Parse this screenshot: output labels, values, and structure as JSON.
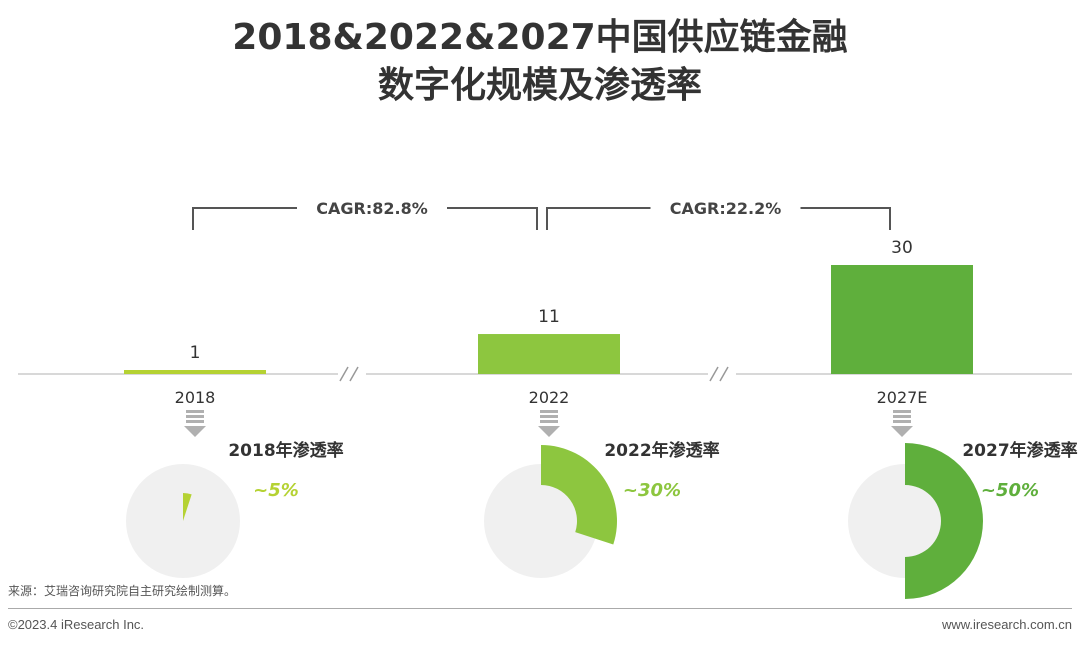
{
  "header": {
    "title_line1": "2018&2022&2027中国供应链金融",
    "title_line2": "数字化规模及渗透率"
  },
  "chart_data": {
    "type": "bar",
    "categories": [
      "2018",
      "2022",
      "2027E"
    ],
    "values": [
      1,
      11,
      30
    ],
    "colors": [
      "#B5D233",
      "#8DC63F",
      "#5FAF3C"
    ],
    "cagr": [
      {
        "label": "CAGR:82.8%",
        "from": "2018",
        "to": "2022"
      },
      {
        "label": "CAGR:22.2%",
        "from": "2022",
        "to": "2027E"
      }
    ],
    "penetration": [
      {
        "title": "2018年渗透率",
        "label": "~5%",
        "value": 5
      },
      {
        "title": "2022年渗透率",
        "label": "~30%",
        "value": 30
      },
      {
        "title": "2027年渗透率",
        "label": "~50%",
        "value": 50
      }
    ]
  },
  "footer": {
    "source": "来源：艾瑞咨询研究院自主研究绘制测算。",
    "copyright": "©2023.4 iResearch Inc.",
    "website": "www.iresearch.com.cn"
  }
}
